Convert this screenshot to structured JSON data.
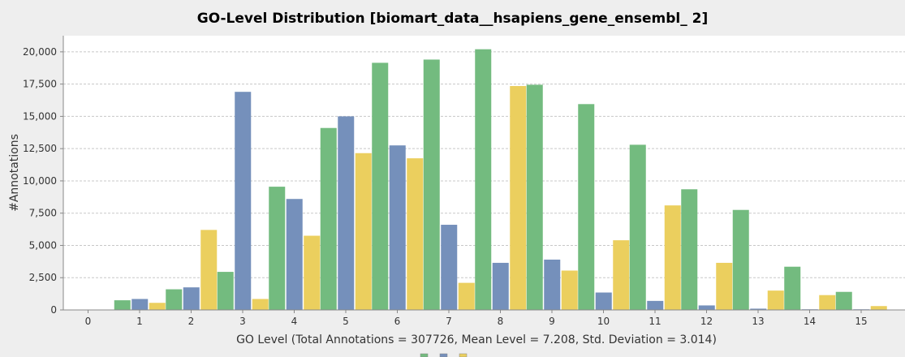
{
  "chart_data": {
    "type": "bar",
    "title": "GO-Level Distribution [biomart_data__hsapiens_gene_ensembl_ 2]",
    "xlabel": "GO Level  (Total Annotations = 307726, Mean Level = 7.208, Std. Deviation = 3.014)",
    "ylabel": "#Annotations",
    "categories": [
      "0",
      "1",
      "2",
      "3",
      "4",
      "5",
      "6",
      "7",
      "8",
      "9",
      "10",
      "11",
      "12",
      "13",
      "14",
      "15"
    ],
    "ylim": [
      0,
      21250
    ],
    "yticks": [
      0,
      2500,
      5000,
      7500,
      10000,
      12500,
      15000,
      17500,
      20000
    ],
    "ytick_labels": [
      "0",
      "2,500",
      "5,000",
      "7,500",
      "10,000",
      "12,500",
      "15,000",
      "17,500",
      "20,000"
    ],
    "grid": true,
    "legend": "bottom",
    "series": [
      {
        "color": "#73bb7f",
        "values": [
          0,
          750,
          1600,
          2950,
          9550,
          14100,
          19150,
          19400,
          20200,
          17450,
          15950,
          12800,
          9350,
          7750,
          3350,
          1400
        ]
      },
      {
        "color": "#7590bb",
        "values": [
          0,
          850,
          1750,
          16900,
          8600,
          15000,
          12750,
          6600,
          3650,
          3900,
          1350,
          700,
          350,
          100,
          50,
          50
        ]
      },
      {
        "color": "#ebcf5e",
        "values": [
          0,
          550,
          6200,
          850,
          5750,
          12150,
          11750,
          2100,
          17350,
          3050,
          5400,
          8100,
          3650,
          1500,
          1150,
          300
        ]
      }
    ]
  }
}
